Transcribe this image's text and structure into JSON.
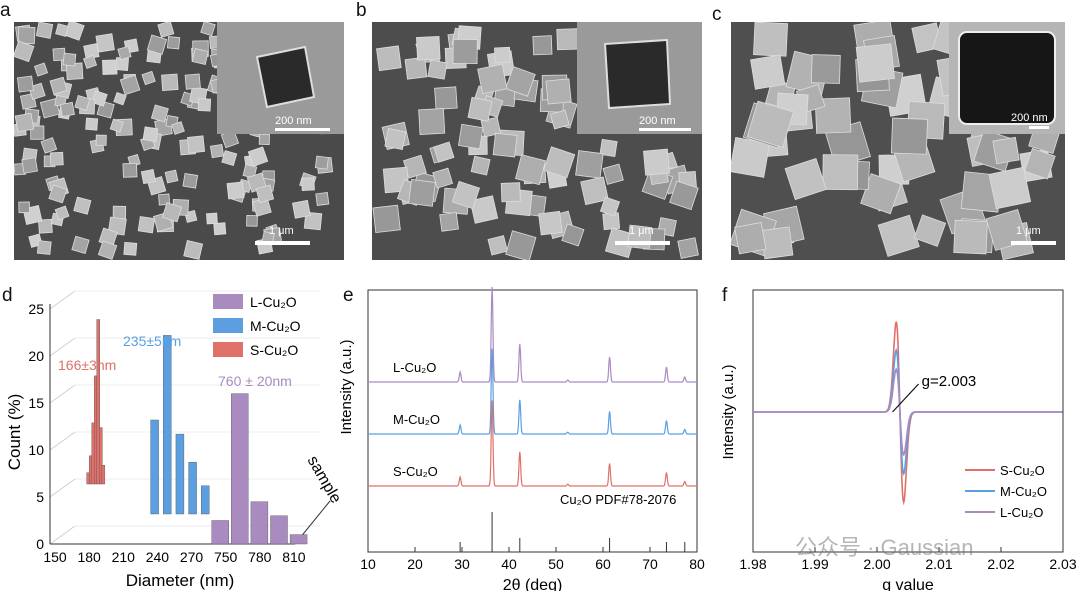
{
  "panels": {
    "a": {
      "letter": "a",
      "scale_main": "1 μm",
      "scale_inset": "200 nm"
    },
    "b": {
      "letter": "b",
      "scale_main": "1 μm",
      "scale_inset": "200 nm"
    },
    "c": {
      "letter": "c",
      "scale_main": "1 μm",
      "scale_inset": "200 nm"
    },
    "d": {
      "letter": "d"
    },
    "e": {
      "letter": "e"
    },
    "f": {
      "letter": "f"
    }
  },
  "watermark": "公众号 · Gaussian",
  "chart_data": [
    {
      "id": "d",
      "type": "bar",
      "xlabel": "Diameter (nm)",
      "ylabel": "Count (%)",
      "zlabel": "sample",
      "x_ticks": [
        "150",
        "180",
        "210",
        "240",
        "270",
        "750",
        "780",
        "810"
      ],
      "y_ticks": [
        "0",
        "5",
        "10",
        "15",
        "20",
        "25"
      ],
      "ylim": [
        0,
        25
      ],
      "legend": [
        "L-Cu₂O",
        "M-Cu₂O",
        "S-Cu₂O"
      ],
      "colors": {
        "L": "#a98bc0",
        "M": "#5b9fe0",
        "S": "#e0706a"
      },
      "annotations": {
        "S": "166±3nm",
        "M": "235±5nm",
        "L": "760 ± 20nm"
      },
      "series": [
        {
          "name": "S-Cu₂O",
          "x": [
            160,
            162,
            164,
            166,
            168,
            170,
            172
          ],
          "values": [
            1.2,
            3.0,
            6.5,
            11.5,
            17.5,
            6.0,
            2.0
          ]
        },
        {
          "name": "M-Cu₂O",
          "x": [
            220,
            230,
            240,
            250,
            260
          ],
          "values": [
            10.0,
            19.0,
            8.5,
            5.5,
            3.0
          ]
        },
        {
          "name": "L-Cu₂O",
          "x": [
            740,
            760,
            780,
            800,
            820
          ],
          "values": [
            2.5,
            16.0,
            4.5,
            3.0,
            1.0
          ]
        }
      ]
    },
    {
      "id": "e",
      "type": "line",
      "xlabel": "2θ (deg)",
      "ylabel": "Intensity (a.u.)",
      "x_ticks": [
        "10",
        "20",
        "30",
        "40",
        "50",
        "60",
        "70",
        "80"
      ],
      "xlim": [
        10,
        80
      ],
      "series": [
        {
          "name": "L-Cu₂O",
          "color": "#a98bc0"
        },
        {
          "name": "M-Cu₂O",
          "color": "#5b9fe0"
        },
        {
          "name": "S-Cu₂O",
          "color": "#e0706a"
        }
      ],
      "peaks": [
        29.6,
        36.4,
        42.3,
        52.5,
        61.4,
        73.5,
        77.4
      ],
      "reference_label": "Cu₂O  PDF#78-2076",
      "reference_lines": [
        29.6,
        36.4,
        42.3,
        61.4,
        73.5,
        77.4
      ]
    },
    {
      "id": "f",
      "type": "line",
      "xlabel": "g value",
      "ylabel": "Intensity (a.u.)",
      "x_ticks": [
        "1.98",
        "1.99",
        "2.00",
        "2.01",
        "2.02",
        "2.03"
      ],
      "xlim": [
        1.98,
        2.03
      ],
      "annotation": "g=2.003",
      "legend": [
        "S-Cu₂O",
        "M-Cu₂O",
        "L-Cu₂O"
      ],
      "series": [
        {
          "name": "S-Cu₂O",
          "color": "#e0706a",
          "pos_peak": 0.95,
          "neg_peak": 1.0
        },
        {
          "name": "M-Cu₂O",
          "color": "#5b9fe0",
          "pos_peak": 0.65,
          "neg_peak": 0.65
        },
        {
          "name": "L-Cu₂O",
          "color": "#a98bc0",
          "pos_peak": 0.45,
          "neg_peak": 0.45
        }
      ]
    }
  ]
}
